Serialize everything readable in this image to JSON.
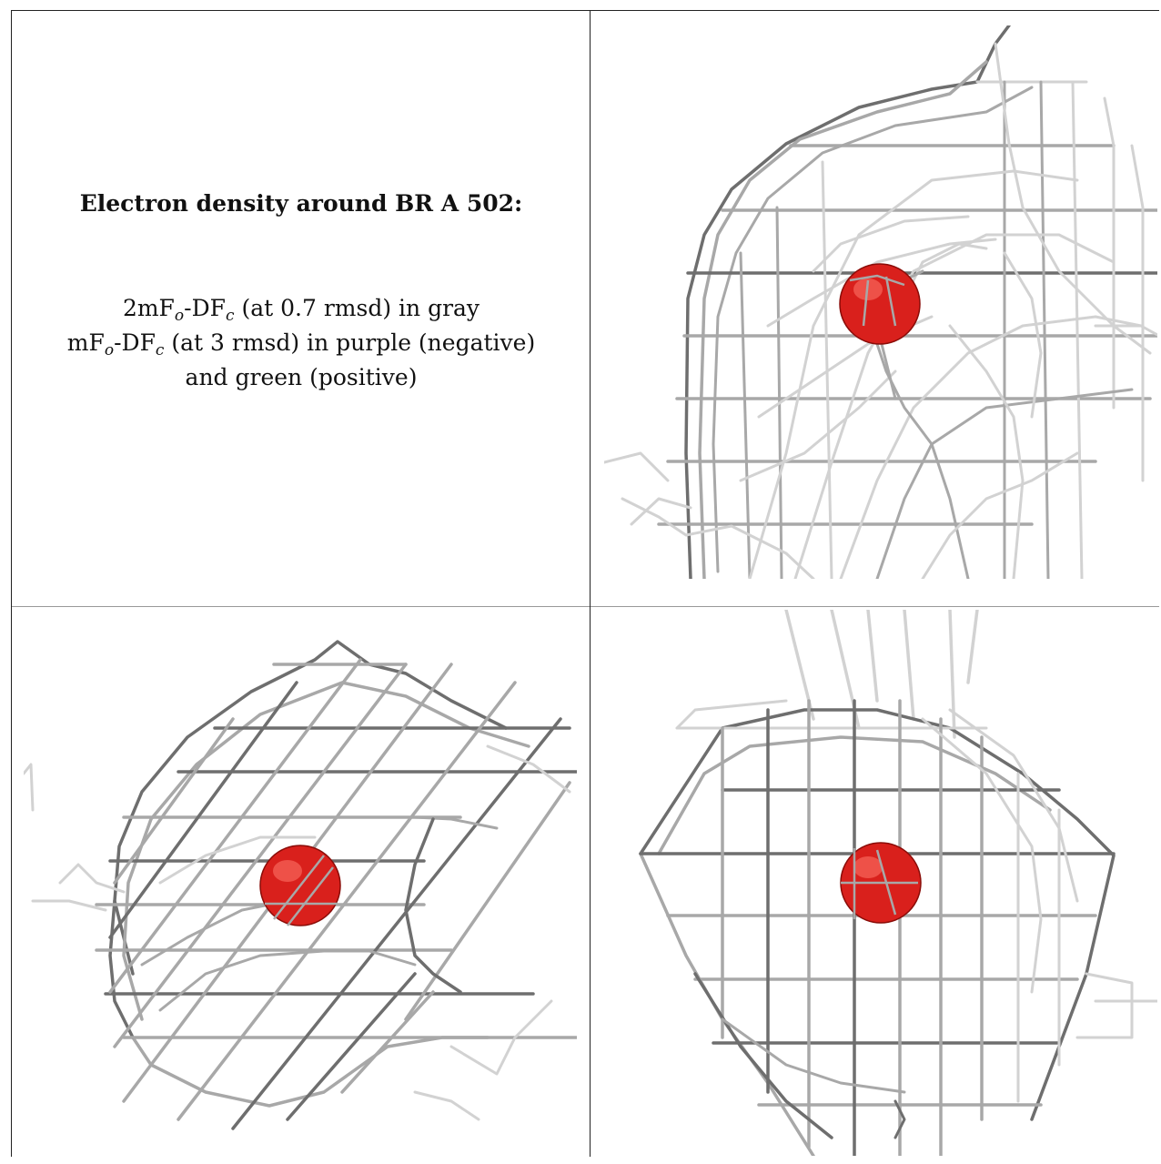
{
  "caption": {
    "title": "Electron density around BR A 502:",
    "line1": {
      "prefix": "2mF",
      "sub1": "o",
      "mid": "-DF",
      "sub2": "c",
      "suffix": " (at 0.7 rmsd) in gray"
    },
    "line2": {
      "prefix": "mF",
      "sub1": "o",
      "mid": "-DF",
      "sub2": "c",
      "suffix": " (at 3 rmsd) in purple (negative)"
    },
    "line3": "and green (positive)"
  },
  "colors": {
    "mesh_light": "#d2d2d2",
    "mesh_mid": "#a8a8a8",
    "mesh_dark": "#6e6e6e",
    "atom": "#d9201c",
    "atom_highlight": "#ff7a6e",
    "atom_shadow": "#8a0c08",
    "border": "#222222"
  },
  "panels": [
    {
      "id": "view-1",
      "atom_label": "BR"
    },
    {
      "id": "view-2",
      "atom_label": "BR"
    },
    {
      "id": "view-3",
      "atom_label": "BR"
    }
  ]
}
